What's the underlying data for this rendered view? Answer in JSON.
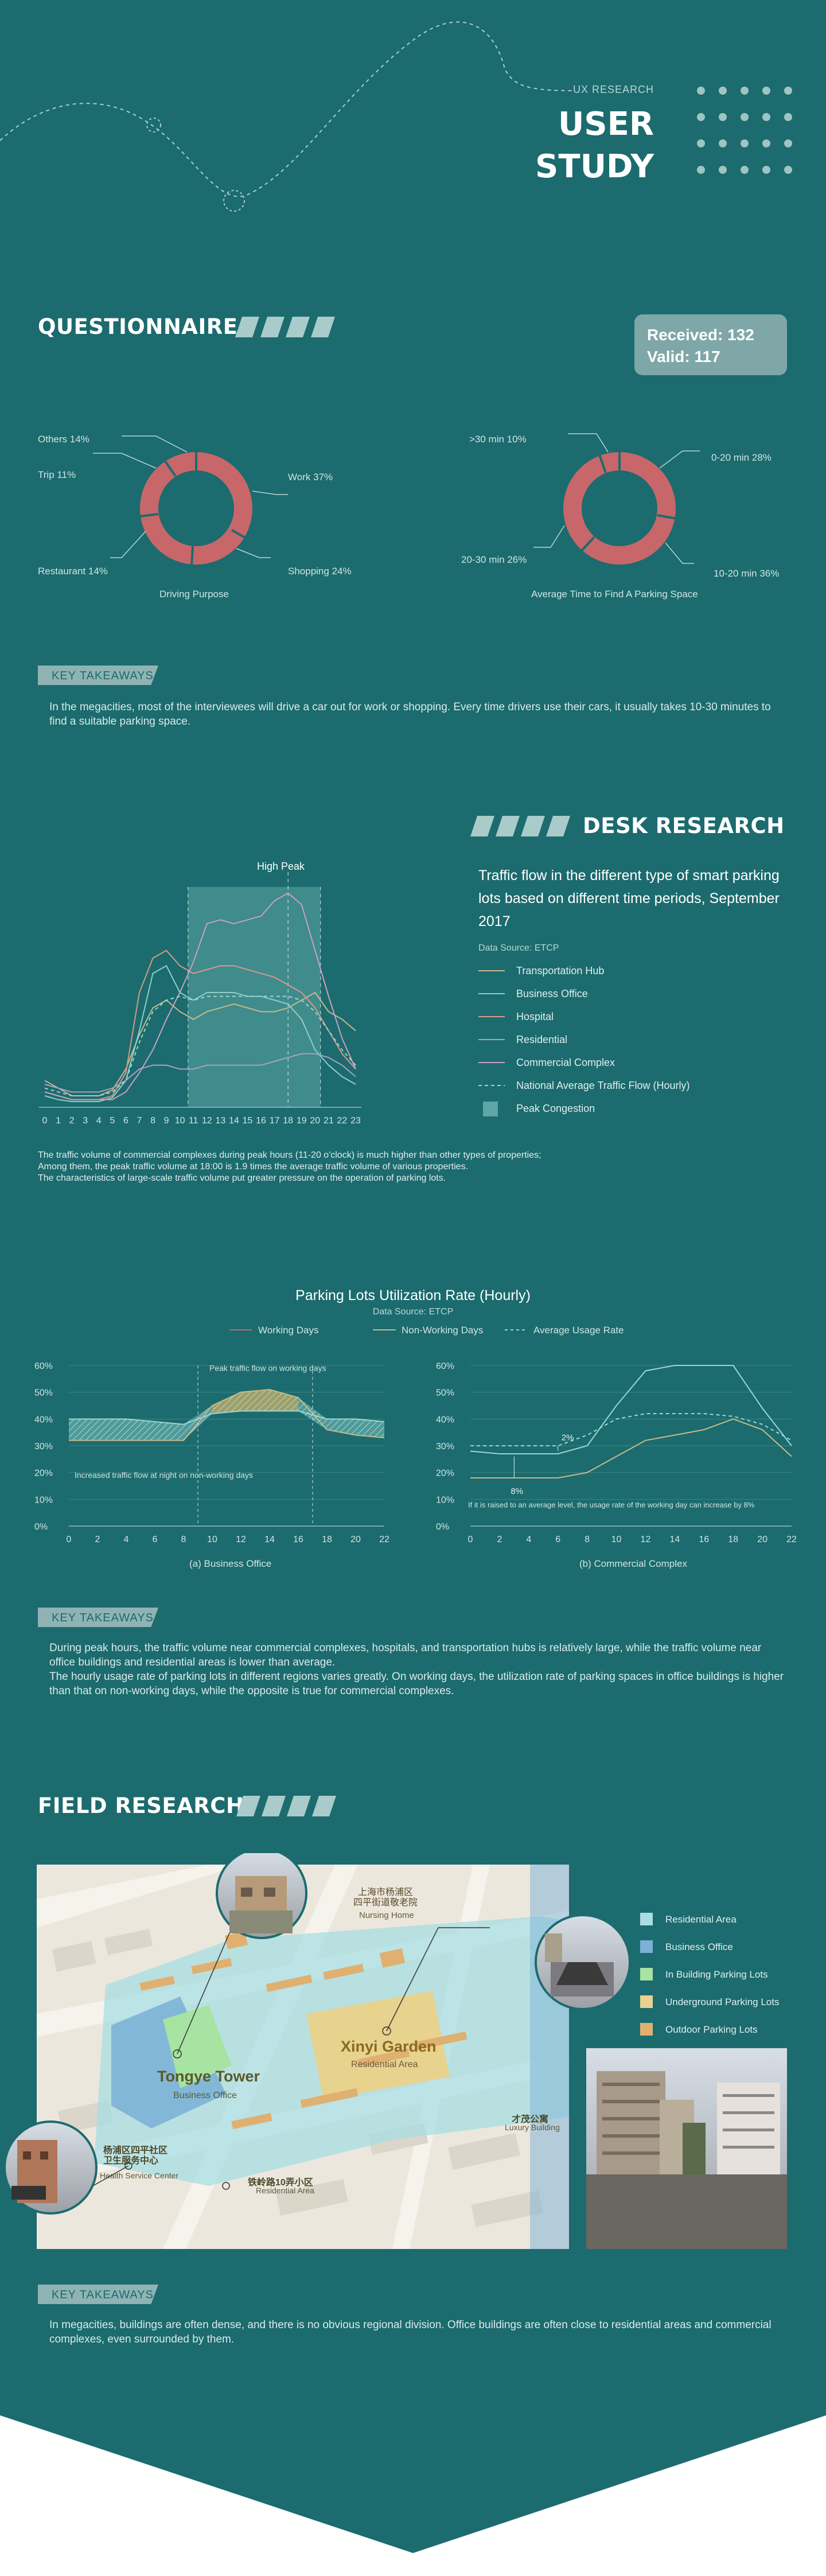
{
  "header": {
    "kicker": "UX RESEARCH",
    "title_line1": "USER",
    "title_line2": "STUDY"
  },
  "questionnaire": {
    "title": "QUESTIONNAIRE",
    "received_label": "Received: 132",
    "valid_label": "Valid: 117",
    "donut1": {
      "caption": "Driving Purpose",
      "labels": [
        "Others 14%",
        "Trip 11%",
        "Work  37%",
        "Restaurant  14%",
        "Shopping  24%"
      ]
    },
    "donut2": {
      "caption": "Average Time to Find A Parking Space",
      "labels": [
        ">30 min 10%",
        "0-20 min 28%",
        "20-30 min 26%",
        "10-20 min  36%"
      ]
    },
    "takeaway_tag": "KEY TAKEAWAYS",
    "takeaway_text": "In the megacities, most of the interviewees will drive a car out for work or shopping. Every time drivers use their cars, it usually takes 10-30 minutes to find a suitable parking space."
  },
  "desk": {
    "title": "DESK RESEARCH",
    "peak_label": "High Peak",
    "chart_title": "Traffic flow in the different type of smart parking lots based on different time periods, September 2017",
    "source": "Data Source: ETCP",
    "legend": [
      "Transportation Hub",
      "Business Office",
      "Hospital",
      "Residential",
      "Commercial Complex",
      "National Average Traffic Flow (Hourly)",
      "Peak Congestion"
    ],
    "note_line1": "The traffic volume of commercial complexes during peak hours (11-20 o'clock) is much higher than other types of properties;",
    "note_line2": "Among them, the peak traffic volume at 18:00 is 1.9 times the average traffic volume of various properties.",
    "note_line3": "The characteristics of large-scale traffic volume put greater pressure on the operation of parking lots.",
    "colors": {
      "transport": "#c9b98a",
      "office": "#8fcfc6",
      "hospital": "#d49a8a",
      "residential": "#a9a0c9",
      "commercial": "#c9a0c0",
      "average": "#9ed6cf"
    }
  },
  "chart_data": [
    {
      "type": "line",
      "x": [
        0,
        1,
        2,
        3,
        4,
        5,
        6,
        7,
        8,
        9,
        10,
        11,
        12,
        13,
        14,
        15,
        16,
        17,
        18,
        19,
        20,
        21,
        22,
        23
      ],
      "series": [
        {
          "name": "Transportation Hub",
          "values": [
            14,
            10,
            6,
            6,
            6,
            9,
            20,
            38,
            52,
            56,
            50,
            46,
            50,
            52,
            54,
            52,
            50,
            50,
            52,
            56,
            60,
            50,
            46,
            40
          ]
        },
        {
          "name": "Business Office",
          "values": [
            6,
            4,
            3,
            3,
            3,
            5,
            14,
            40,
            70,
            74,
            60,
            56,
            60,
            60,
            60,
            58,
            58,
            56,
            54,
            46,
            30,
            22,
            16,
            12
          ]
        },
        {
          "name": "Hospital",
          "values": [
            8,
            6,
            4,
            4,
            4,
            6,
            18,
            60,
            78,
            82,
            74,
            70,
            72,
            74,
            74,
            72,
            70,
            68,
            64,
            60,
            52,
            40,
            28,
            20
          ]
        },
        {
          "name": "Residential",
          "values": [
            12,
            10,
            8,
            8,
            8,
            10,
            14,
            20,
            22,
            22,
            20,
            20,
            22,
            22,
            22,
            22,
            22,
            24,
            26,
            28,
            28,
            26,
            22,
            16
          ]
        },
        {
          "name": "Commercial Complex",
          "values": [
            8,
            6,
            4,
            4,
            4,
            4,
            8,
            18,
            30,
            46,
            60,
            76,
            96,
            98,
            96,
            98,
            100,
            108,
            112,
            106,
            82,
            58,
            36,
            20
          ]
        },
        {
          "name": "National Average Traffic Flow (Hourly)",
          "values": [
            10,
            8,
            6,
            6,
            6,
            8,
            14,
            34,
            50,
            56,
            58,
            56,
            58,
            58,
            58,
            58,
            58,
            58,
            58,
            56,
            50,
            40,
            30,
            22
          ]
        }
      ],
      "peak_range": [
        11,
        20
      ],
      "xticks": [
        "0",
        "1",
        "2",
        "3",
        "4",
        "5",
        "6",
        "7",
        "8",
        "9",
        "10",
        "11",
        "12",
        "13",
        "14",
        "15",
        "16",
        "17",
        "18",
        "19",
        "20",
        "21",
        "22",
        "23"
      ]
    },
    {
      "type": "area",
      "title": "Parking Lots Utilization Rate (Hourly)",
      "subtitle": "Data Source: ETCP",
      "legend": [
        "Working Days",
        "Non-Working Days",
        "Average Usage Rate"
      ],
      "xlabel": "(a) Business Office",
      "x": [
        0,
        2,
        4,
        6,
        8,
        10,
        12,
        14,
        16,
        18,
        20,
        22
      ],
      "ylim": [
        0,
        60
      ],
      "yticks": [
        "0%",
        "10%",
        "20%",
        "30%",
        "40%",
        "50%",
        "60%"
      ],
      "xticks": [
        "0",
        "2",
        "4",
        "6",
        "8",
        "10",
        "12",
        "14",
        "16",
        "18",
        "20",
        "22"
      ],
      "series": [
        {
          "name": "Working Days",
          "values": [
            32,
            32,
            32,
            32,
            32,
            45,
            50,
            51,
            48,
            36,
            34,
            33
          ]
        },
        {
          "name": "Non-Working Days",
          "values": [
            40,
            40,
            40,
            39,
            38,
            42,
            43,
            43,
            43,
            40,
            40,
            39
          ]
        }
      ],
      "annotations": [
        "Peak traffic flow on working days",
        "Increased traffic flow at night on non-working days"
      ]
    },
    {
      "type": "line",
      "xlabel": "(b) Commercial Complex",
      "x": [
        0,
        2,
        4,
        6,
        8,
        10,
        12,
        14,
        16,
        18,
        20,
        22
      ],
      "ylim": [
        0,
        60
      ],
      "yticks": [
        "60%",
        "50%",
        "40%",
        "30%",
        "20%",
        "10%",
        "0%"
      ],
      "xticks": [
        "0",
        "2",
        "4",
        "6",
        "8",
        "10",
        "12",
        "14",
        "16",
        "18",
        "20",
        "22"
      ],
      "series": [
        {
          "name": "Working Days",
          "values": [
            18,
            18,
            18,
            18,
            20,
            26,
            32,
            34,
            36,
            40,
            36,
            26
          ]
        },
        {
          "name": "Non-Working Days",
          "values": [
            28,
            27,
            27,
            27,
            30,
            45,
            58,
            60,
            60,
            60,
            44,
            30
          ]
        },
        {
          "name": "Average Usage Rate",
          "values": [
            30,
            30,
            30,
            30,
            34,
            40,
            42,
            42,
            42,
            41,
            38,
            32
          ]
        }
      ],
      "annotations": [
        "2%",
        "8%",
        "If it is raised to an average level, the usage rate of the working day can increase by 8%"
      ]
    }
  ],
  "parking": {
    "takeaway_tag": "KEY TAKEAWAYS",
    "takeaway_line1": "During peak hours, the traffic volume near commercial complexes, hospitals, and transportation hubs is relatively large, while the traffic volume near office buildings and residential areas is lower than average.",
    "takeaway_line2": "The hourly usage rate of parking lots in different regions varies greatly. On working days, the utilization rate of parking spaces in office buildings is higher than that on non-working days, while the opposite is true for commercial complexes."
  },
  "field": {
    "title": "FIELD RESEARCH",
    "legend": [
      "Residential Area",
      "Business Office",
      "In Building Parking Lots",
      "Underground Parking Lots",
      "Outdoor Parking Lots"
    ],
    "legend_colors": [
      "#a8dde3",
      "#7cb2d6",
      "#a7e3a2",
      "#e7d28e",
      "#e0b070"
    ],
    "map_labels": {
      "nursing_cn": "上海市杨浦区\n四平街道敬老院",
      "nursing_en": "Nursing Home",
      "xinyi_cn": "Xinyi Garden",
      "xinyi_en": "Residential Area",
      "tongye_cn": "Tongye Tower",
      "tongye_en": "Business Office",
      "health_cn": "杨浦区四平社区\n卫生服务中心",
      "health_en": "Health Service Center",
      "tielu_cn": "铁岭路10弄小区",
      "tielu_en": "Residential Area",
      "caimao_cn": "才茂公寓",
      "caimao_en": "Luxury Building"
    },
    "takeaway_tag": "KEY TAKEAWAYS",
    "takeaway_text": "In megacities, buildings are often dense, and there is no obvious regional division. Office buildings are often close to residential areas and commercial complexes, even surrounded by them."
  }
}
